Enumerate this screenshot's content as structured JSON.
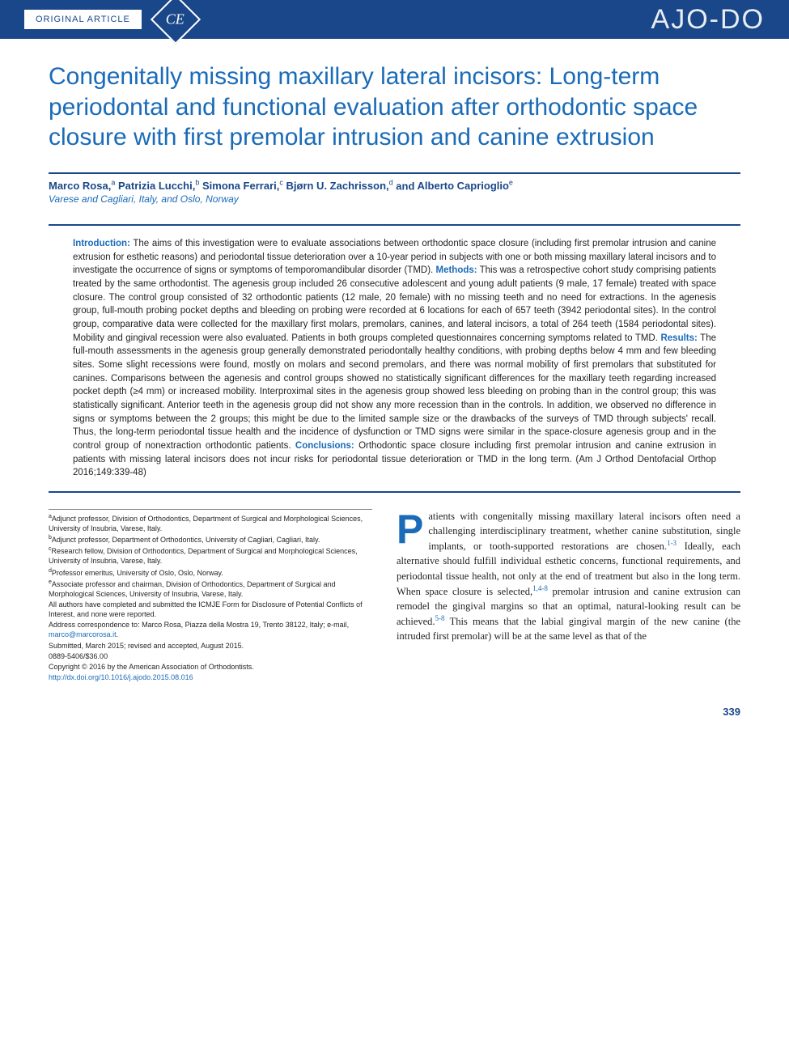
{
  "header": {
    "article_type": "ORIGINAL ARTICLE",
    "ce_badge": "CE",
    "journal_logo": "AJO-DO"
  },
  "title": "Congenitally missing maxillary lateral incisors: Long-term periodontal and functional evaluation after orthodontic space closure with first premolar intrusion and canine extrusion",
  "authors": [
    {
      "name": "Marco Rosa",
      "sup": "a"
    },
    {
      "name": "Patrizia Lucchi",
      "sup": "b"
    },
    {
      "name": "Simona Ferrari",
      "sup": "c"
    },
    {
      "name": "Bjørn U. Zachrisson",
      "sup": "d"
    },
    {
      "name": "Alberto Caprioglio",
      "sup": "e"
    }
  ],
  "affiliation_cities": "Varese and Cagliari, Italy, and Oslo, Norway",
  "abstract": {
    "introduction_label": "Introduction:",
    "introduction": " The aims of this investigation were to evaluate associations between orthodontic space closure (including first premolar intrusion and canine extrusion for esthetic reasons) and periodontal tissue deterioration over a 10-year period in subjects with one or both missing maxillary lateral incisors and to investigate the occurrence of signs or symptoms of temporomandibular disorder (TMD). ",
    "methods_label": "Methods:",
    "methods": " This was a retrospective cohort study comprising patients treated by the same orthodontist. The agenesis group included 26 consecutive adolescent and young adult patients (9 male, 17 female) treated with space closure. The control group consisted of 32 orthodontic patients (12 male, 20 female) with no missing teeth and no need for extractions. In the agenesis group, full-mouth probing pocket depths and bleeding on probing were recorded at 6 locations for each of 657 teeth (3942 periodontal sites). In the control group, comparative data were collected for the maxillary first molars, premolars, canines, and lateral incisors, a total of 264 teeth (1584 periodontal sites). Mobility and gingival recession were also evaluated. Patients in both groups completed questionnaires concerning symptoms related to TMD. ",
    "results_label": "Results:",
    "results": " The full-mouth assessments in the agenesis group generally demonstrated periodontally healthy conditions, with probing depths below 4 mm and few bleeding sites. Some slight recessions were found, mostly on molars and second premolars, and there was normal mobility of first premolars that substituted for canines. Comparisons between the agenesis and control groups showed no statistically significant differences for the maxillary teeth regarding increased pocket depth (≥4 mm) or increased mobility. Interproximal sites in the agenesis group showed less bleeding on probing than in the control group; this was statistically significant. Anterior teeth in the agenesis group did not show any more recession than in the controls. In addition, we observed no difference in signs or symptoms between the 2 groups; this might be due to the limited sample size or the drawbacks of the surveys of TMD through subjects' recall. Thus, the long-term periodontal tissue health and the incidence of dysfunction or TMD signs were similar in the space-closure agenesis group and in the control group of nonextraction orthodontic patients. ",
    "conclusions_label": "Conclusions:",
    "conclusions": " Orthodontic space closure including first premolar intrusion and canine extrusion in patients with missing lateral incisors does not incur risks for periodontal tissue deterioration or TMD in the long term.",
    "citation": "(Am J Orthod Dentofacial Orthop 2016;149:339-48)"
  },
  "footnotes": {
    "a": "Adjunct professor, Division of Orthodontics, Department of Surgical and Morphological Sciences, University of Insubria, Varese, Italy.",
    "b": "Adjunct professor, Department of Orthodontics, University of Cagliari, Cagliari, Italy.",
    "c": "Research fellow, Division of Orthodontics, Department of Surgical and Morphological Sciences, University of Insubria, Varese, Italy.",
    "d": "Professor emeritus, University of Oslo, Oslo, Norway.",
    "e": "Associate professor and chairman, Division of Orthodontics, Department of Surgical and Morphological Sciences, University of Insubria, Varese, Italy.",
    "disclosure": "All authors have completed and submitted the ICMJE Form for Disclosure of Potential Conflicts of Interest, and none were reported.",
    "correspondence": "Address correspondence to: Marco Rosa, Piazza della Mostra 19, Trento 38122, Italy; e-mail, ",
    "email": "marco@marcorosa.it",
    "submitted": "Submitted, March 2015; revised and accepted, August 2015.",
    "issn": "0889-5406/$36.00",
    "copyright": "Copyright © 2016 by the American Association of Orthodontists.",
    "doi": "http://dx.doi.org/10.1016/j.ajodo.2015.08.016"
  },
  "body": {
    "dropcap": "P",
    "first_para_rest": "atients with congenitally missing maxillary lateral incisors often need a challenging interdisciplinary treatment, whether canine substitution, single implants, or tooth-supported restorations are chosen.",
    "ref1": "1-3",
    "p2a": " Ideally, each alternative should fulfill individual esthetic concerns, functional requirements, and periodontal tissue health, not only at the end of treatment but also in the long term. When space closure is selected,",
    "ref2": "1,4-8",
    "p2b": " premolar intrusion and canine extrusion can remodel the gingival margins so that an optimal, natural-looking result can be achieved.",
    "ref3": "5-8",
    "p2c": " This means that the labial gingival margin of the new canine (the intruded first premolar) will be at the same level as that of the"
  },
  "page_number": "339",
  "colors": {
    "header_bg": "#1a4789",
    "title_color": "#1a6bb8",
    "text_color": "#231f20"
  }
}
